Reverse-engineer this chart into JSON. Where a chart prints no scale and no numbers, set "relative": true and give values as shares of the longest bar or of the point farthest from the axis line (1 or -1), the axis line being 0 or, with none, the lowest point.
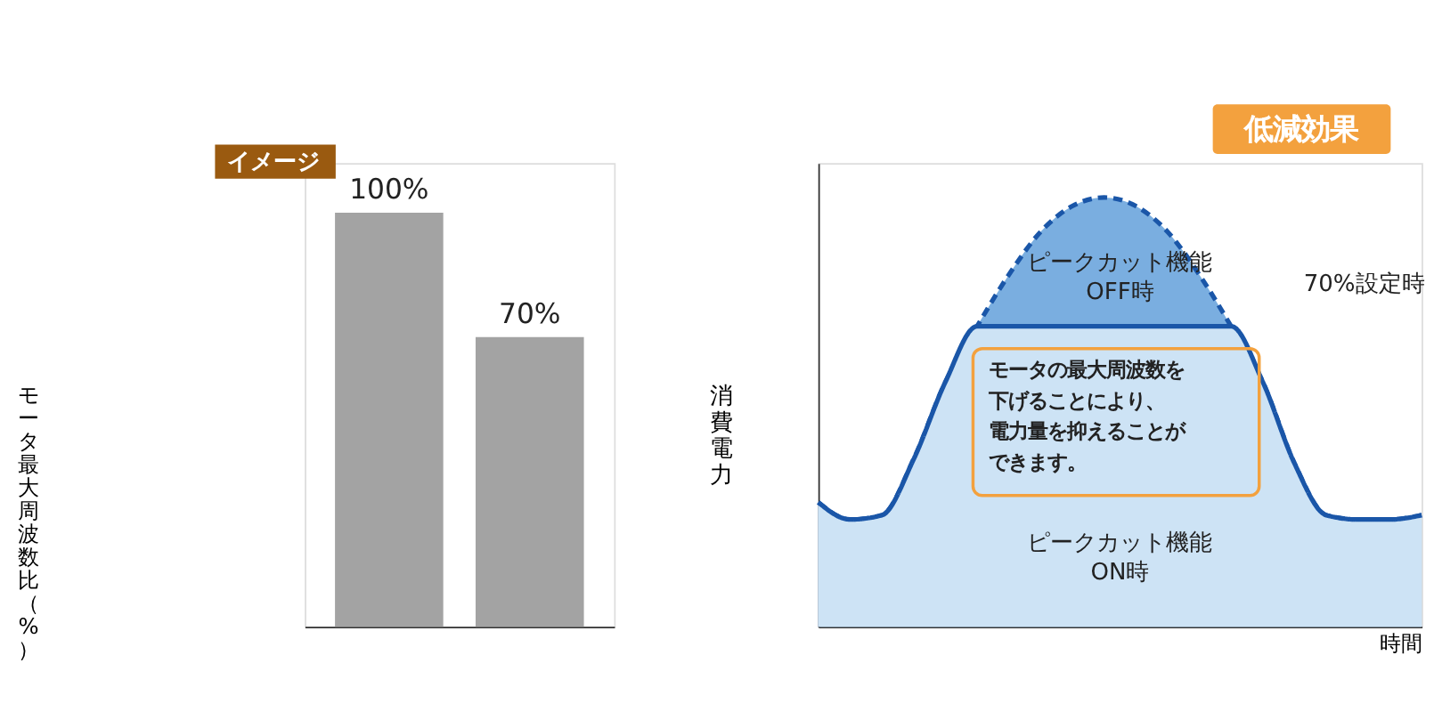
{
  "chart_data": [
    {
      "type": "bar",
      "categories": [
        null,
        null
      ],
      "values": [
        100,
        70
      ],
      "value_labels": [
        "100%",
        "70%"
      ],
      "colors": [
        "#a3a3a3",
        "#a3a3a3"
      ],
      "ylabel": "モータ最大周波数比（%）",
      "annotations": [
        "イメージ"
      ],
      "legend": false,
      "grid": false
    },
    {
      "type": "area",
      "relative": true,
      "categories": [
        null,
        null,
        null,
        null,
        null,
        null,
        null,
        null,
        null,
        null,
        null,
        null,
        null,
        null,
        null,
        null,
        null,
        null,
        null,
        null
      ],
      "xlabel": "時間",
      "ylabel": "消費電力",
      "legend": false,
      "grid": false,
      "series": [
        {
          "name": "ピークカット機能\nOFF時",
          "color": "#7aaee0",
          "line_style": "dashed",
          "values": [
            0.29,
            0.25,
            0.26,
            0.39,
            0.57,
            0.7,
            0.82,
            0.92,
            0.98,
            1.0,
            0.98,
            0.92,
            0.82,
            0.7,
            0.57,
            0.38,
            0.26,
            0.25,
            0.25,
            0.26
          ]
        },
        {
          "name": "ピークカット機能\nON時",
          "color": "#cde3f5",
          "line_style": "solid",
          "values": [
            0.29,
            0.25,
            0.26,
            0.39,
            0.57,
            0.7,
            0.7,
            0.7,
            0.7,
            0.7,
            0.7,
            0.7,
            0.7,
            0.7,
            0.57,
            0.38,
            0.26,
            0.25,
            0.25,
            0.26
          ]
        }
      ],
      "annotations": [
        "70%設定時",
        "低減効果",
        "モータの最大周波数を下げることにより、電力量を抑えることができます。"
      ]
    }
  ]
}
